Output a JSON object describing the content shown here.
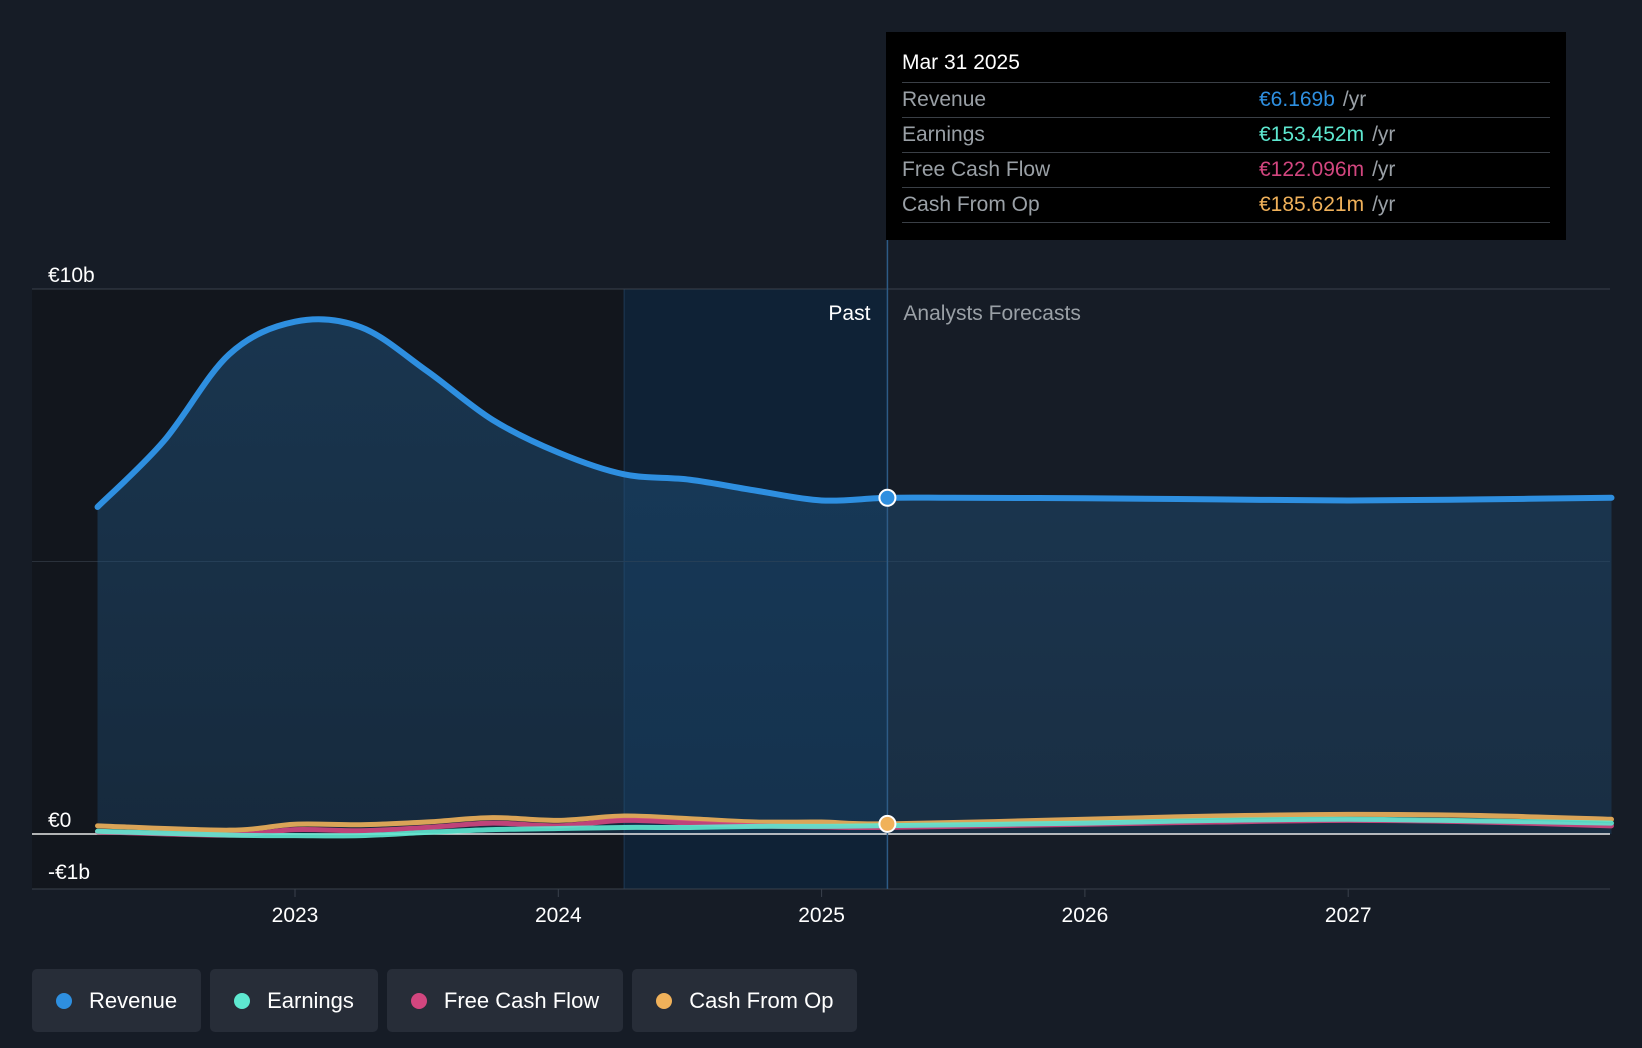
{
  "chart_data": {
    "type": "area",
    "y_axis": {
      "unit": "€",
      "ticks": [
        "€10b",
        "€0",
        "-€1b"
      ],
      "ylim": [
        -1,
        10
      ]
    },
    "x_axis": {
      "ticks": [
        "2023",
        "2024",
        "2025",
        "2026",
        "2027"
      ]
    },
    "sections": {
      "past_label": "Past",
      "forecast_label": "Analysts Forecasts"
    },
    "series": [
      {
        "name": "Revenue",
        "color": "#2e8fe0",
        "points": [
          [
            2022.25,
            6.0
          ],
          [
            2022.5,
            7.2
          ],
          [
            2022.75,
            8.8
          ],
          [
            2023.0,
            9.4
          ],
          [
            2023.25,
            9.3
          ],
          [
            2023.5,
            8.5
          ],
          [
            2023.75,
            7.6
          ],
          [
            2024.0,
            7.0
          ],
          [
            2024.25,
            6.6
          ],
          [
            2024.5,
            6.5
          ],
          [
            2024.75,
            6.3
          ],
          [
            2025.0,
            6.12
          ],
          [
            2025.25,
            6.169
          ],
          [
            2025.5,
            6.17
          ],
          [
            2026.0,
            6.16
          ],
          [
            2026.5,
            6.14
          ],
          [
            2027.0,
            6.12
          ],
          [
            2027.5,
            6.14
          ],
          [
            2028.0,
            6.17
          ]
        ]
      },
      {
        "name": "Earnings",
        "color": "#5ee8d0",
        "points": [
          [
            2022.25,
            0.05
          ],
          [
            2022.75,
            -0.02
          ],
          [
            2023.0,
            -0.03
          ],
          [
            2023.25,
            -0.03
          ],
          [
            2023.5,
            0.03
          ],
          [
            2023.75,
            0.08
          ],
          [
            2024.0,
            0.1
          ],
          [
            2024.25,
            0.12
          ],
          [
            2024.5,
            0.12
          ],
          [
            2024.75,
            0.14
          ],
          [
            2025.0,
            0.14
          ],
          [
            2025.25,
            0.153
          ],
          [
            2026.0,
            0.2
          ],
          [
            2026.5,
            0.25
          ],
          [
            2027.0,
            0.27
          ],
          [
            2027.5,
            0.24
          ],
          [
            2028.0,
            0.2
          ]
        ]
      },
      {
        "name": "Free Cash Flow",
        "color": "#d2467f",
        "points": [
          [
            2022.25,
            0.04
          ],
          [
            2022.75,
            -0.02
          ],
          [
            2023.0,
            0.08
          ],
          [
            2023.25,
            0.06
          ],
          [
            2023.5,
            0.12
          ],
          [
            2023.75,
            0.2
          ],
          [
            2024.0,
            0.15
          ],
          [
            2024.25,
            0.25
          ],
          [
            2024.5,
            0.2
          ],
          [
            2024.75,
            0.15
          ],
          [
            2025.0,
            0.13
          ],
          [
            2025.25,
            0.122
          ],
          [
            2026.0,
            0.18
          ],
          [
            2026.5,
            0.22
          ],
          [
            2027.0,
            0.25
          ],
          [
            2027.5,
            0.22
          ],
          [
            2028.0,
            0.15
          ]
        ]
      },
      {
        "name": "Cash From Op",
        "color": "#f0b15a",
        "points": [
          [
            2022.25,
            0.15
          ],
          [
            2022.75,
            0.07
          ],
          [
            2023.0,
            0.18
          ],
          [
            2023.25,
            0.17
          ],
          [
            2023.5,
            0.22
          ],
          [
            2023.75,
            0.3
          ],
          [
            2024.0,
            0.25
          ],
          [
            2024.25,
            0.33
          ],
          [
            2024.5,
            0.28
          ],
          [
            2024.75,
            0.22
          ],
          [
            2025.0,
            0.22
          ],
          [
            2025.25,
            0.186
          ],
          [
            2026.0,
            0.27
          ],
          [
            2026.5,
            0.33
          ],
          [
            2027.0,
            0.36
          ],
          [
            2027.5,
            0.34
          ],
          [
            2028.0,
            0.27
          ]
        ]
      }
    ],
    "highlight_x": 2025.25
  },
  "tooltip": {
    "date": "Mar 31 2025",
    "rows": [
      {
        "label": "Revenue",
        "value": "€6.169b",
        "unit": "/yr",
        "color": "#2e8fe0"
      },
      {
        "label": "Earnings",
        "value": "€153.452m",
        "unit": "/yr",
        "color": "#5ee8d0"
      },
      {
        "label": "Free Cash Flow",
        "value": "€122.096m",
        "unit": "/yr",
        "color": "#d2467f"
      },
      {
        "label": "Cash From Op",
        "value": "€185.621m",
        "unit": "/yr",
        "color": "#f0b15a"
      }
    ]
  },
  "legend": [
    {
      "label": "Revenue",
      "color": "#2e8fe0"
    },
    {
      "label": "Earnings",
      "color": "#5ee8d0"
    },
    {
      "label": "Free Cash Flow",
      "color": "#d2467f"
    },
    {
      "label": "Cash From Op",
      "color": "#f0b15a"
    }
  ]
}
